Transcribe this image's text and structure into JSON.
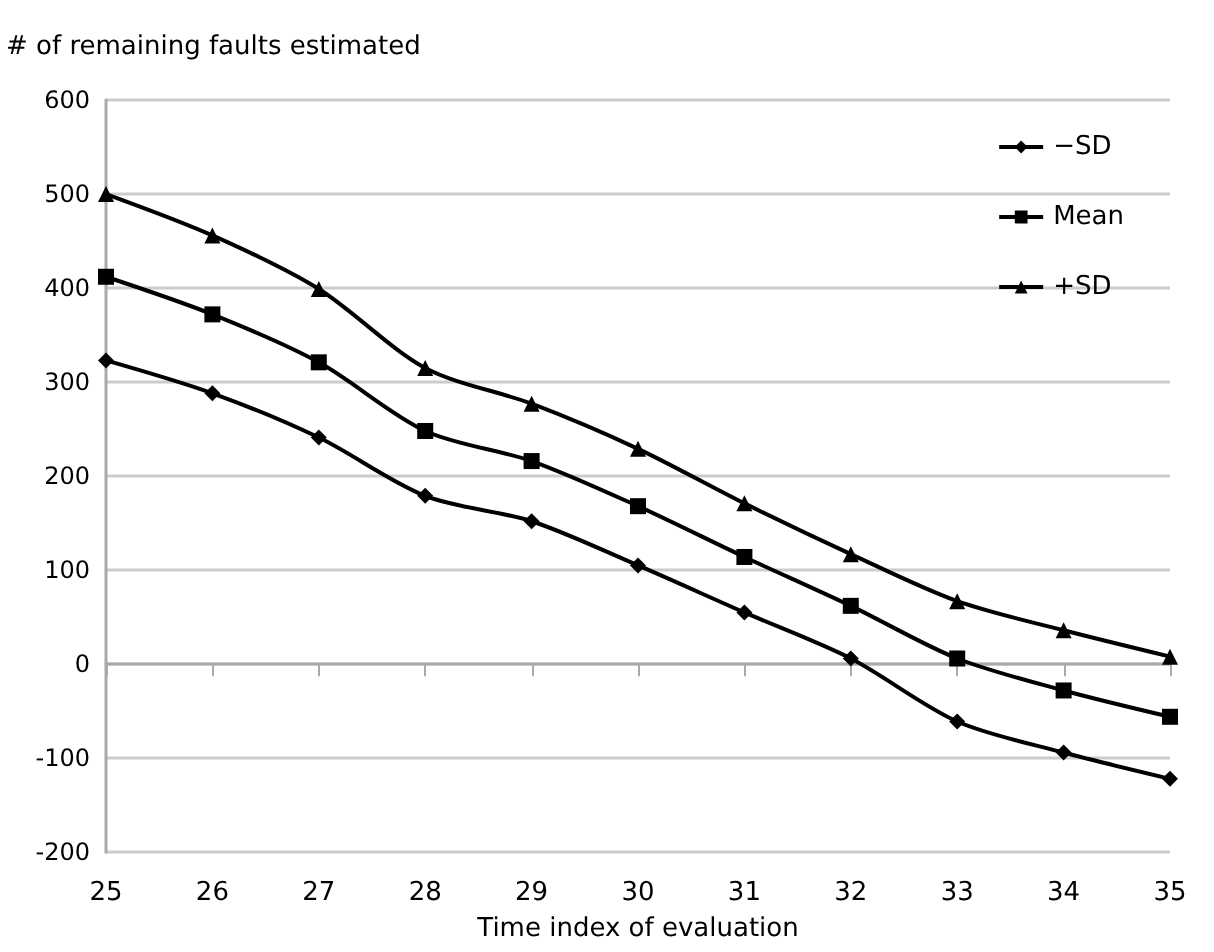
{
  "chart_data": {
    "type": "line",
    "ylabel": "# of remaining faults estimated",
    "xlabel": "Time index of evaluation",
    "categories": [
      "25",
      "26",
      "27",
      "28",
      "29",
      "30",
      "31",
      "32",
      "33",
      "34",
      "35"
    ],
    "series": [
      {
        "name": "−SD",
        "color": "#000000",
        "marker": "diamond",
        "values": [
          323,
          288,
          241,
          179,
          152,
          105,
          55,
          6,
          -61,
          -94,
          -122
        ]
      },
      {
        "name": "Mean",
        "color": "#000000",
        "marker": "square",
        "values": [
          412,
          372,
          321,
          248,
          216,
          168,
          114,
          62,
          6,
          -28,
          -56
        ]
      },
      {
        "name": "+SD",
        "color": "#000000",
        "marker": "triangle",
        "values": [
          500,
          456,
          399,
          315,
          277,
          229,
          171,
          117,
          67,
          36,
          8
        ]
      }
    ],
    "ylim": [
      -200,
      600
    ],
    "yticks": [
      -200,
      -100,
      0,
      100,
      200,
      300,
      400,
      500,
      600
    ],
    "grid": "y",
    "legend": "top right",
    "line_style": "solid"
  }
}
